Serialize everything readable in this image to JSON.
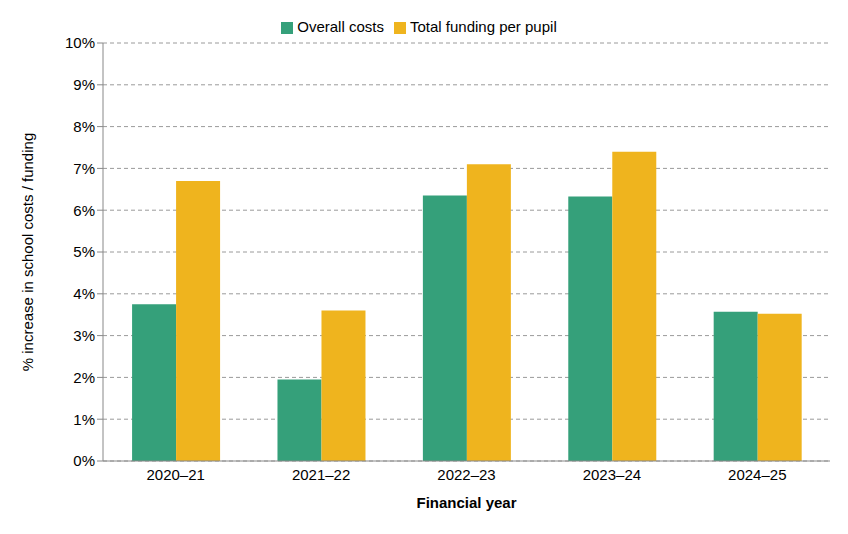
{
  "chart_data": {
    "type": "bar",
    "x_label": "Financial year",
    "y_label": "% increase in school costs / funding",
    "categories": [
      "2020–21",
      "2021–22",
      "2022–23",
      "2023–24",
      "2024–25"
    ],
    "series": [
      {
        "name": "Overall costs",
        "color": "#35a07a",
        "values": [
          3.75,
          1.95,
          6.35,
          6.33,
          3.57
        ]
      },
      {
        "name": "Total funding per pupil",
        "color": "#efb41e",
        "values": [
          6.7,
          3.6,
          7.1,
          7.4,
          3.52
        ]
      }
    ],
    "ylim": [
      0,
      10
    ],
    "yticks": [
      {
        "value": 0,
        "label": "0%"
      },
      {
        "value": 1,
        "label": "1%"
      },
      {
        "value": 2,
        "label": "2%"
      },
      {
        "value": 3,
        "label": "3%"
      },
      {
        "value": 4,
        "label": "4%"
      },
      {
        "value": 5,
        "label": "5%"
      },
      {
        "value": 6,
        "label": "6%"
      },
      {
        "value": 7,
        "label": "7%"
      },
      {
        "value": 8,
        "label": "8%"
      },
      {
        "value": 9,
        "label": "9%"
      },
      {
        "value": 10,
        "label": "10%"
      }
    ],
    "grid": true,
    "legend": "top"
  }
}
